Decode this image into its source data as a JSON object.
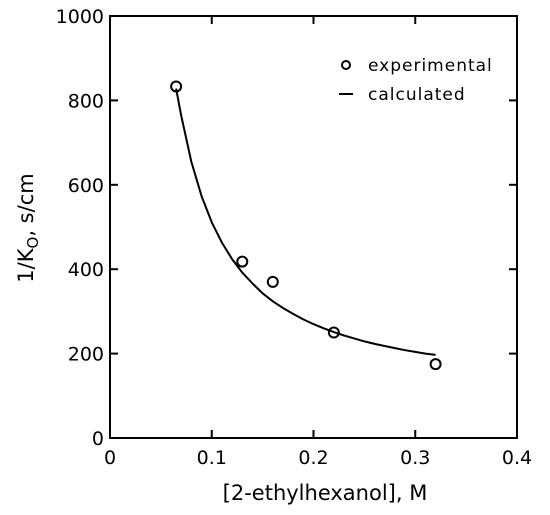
{
  "chart_data": {
    "type": "scatter",
    "xlabel": "[2-ethylhexanol], M",
    "ylabel": {
      "prefix": "1/K",
      "subscript": "O",
      "suffix": ", s/cm"
    },
    "xlim": [
      0,
      0.4
    ],
    "ylim": [
      0,
      1000
    ],
    "x_ticks": [
      "0",
      "0.1",
      "0.2",
      "0.3",
      "0.4"
    ],
    "y_ticks": [
      "0",
      "200",
      "400",
      "600",
      "800",
      "1000"
    ],
    "x_tick_values": [
      0,
      0.1,
      0.2,
      0.3,
      0.4
    ],
    "y_tick_values": [
      0,
      200,
      400,
      600,
      800,
      1000
    ],
    "grid": false,
    "legend_position": "top-right",
    "series": [
      {
        "name": "experimental",
        "kind": "markers",
        "marker": "open-circle",
        "x": [
          0.065,
          0.13,
          0.16,
          0.22,
          0.32
        ],
        "y": [
          833,
          418,
          370,
          250,
          175
        ]
      },
      {
        "name": "calculated",
        "kind": "line",
        "x": [
          0.065,
          0.07,
          0.08,
          0.09,
          0.1,
          0.11,
          0.12,
          0.13,
          0.14,
          0.15,
          0.16,
          0.17,
          0.18,
          0.19,
          0.2,
          0.21,
          0.22,
          0.23,
          0.24,
          0.25,
          0.26,
          0.27,
          0.28,
          0.29,
          0.3,
          0.31,
          0.32
        ],
        "y": [
          828,
          764,
          654,
          573,
          511,
          463,
          424,
          392,
          366,
          343,
          324,
          308,
          294,
          281,
          270,
          260,
          251,
          243,
          236,
          229,
          223,
          218,
          213,
          208,
          204,
          200,
          197
        ]
      }
    ]
  }
}
